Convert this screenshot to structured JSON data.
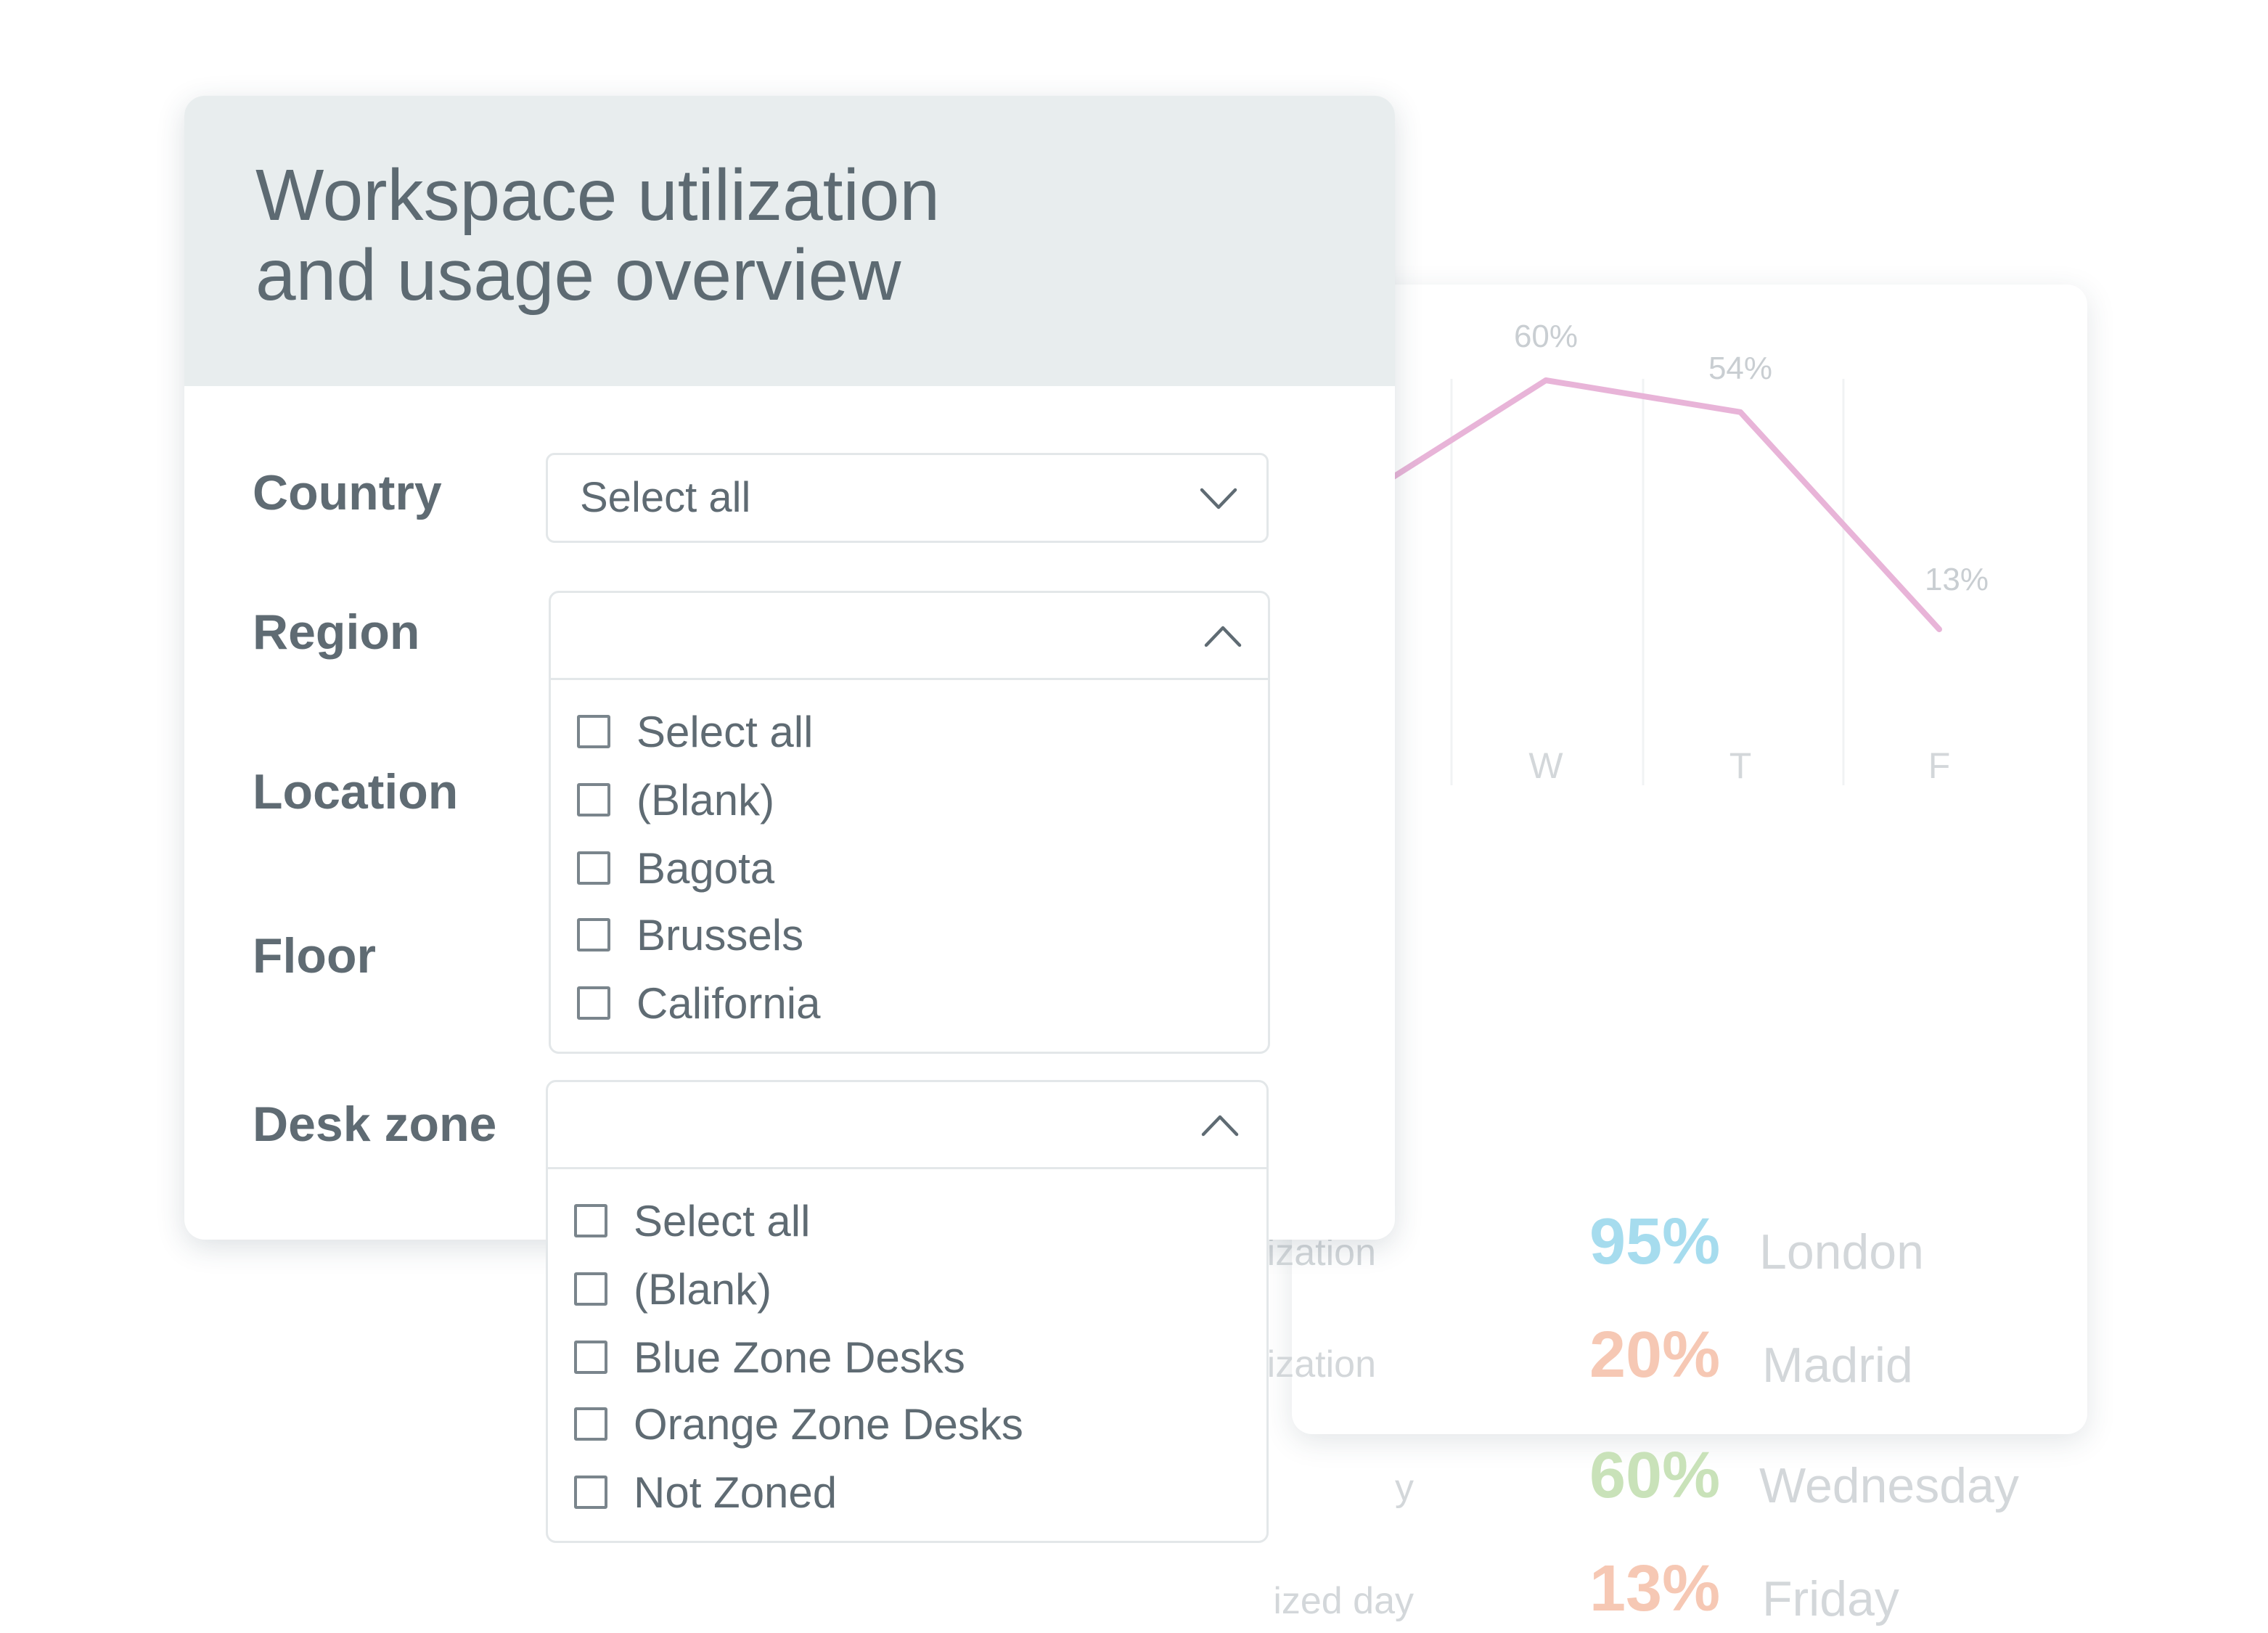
{
  "title": {
    "line1": "Workspace utilization",
    "line2": "and usage overview"
  },
  "filters": {
    "country": {
      "label": "Country",
      "value": "Select all"
    },
    "region": {
      "label": "Region",
      "options": [
        "Select all",
        "(Blank)",
        "Bagota",
        "Brussels",
        "California"
      ]
    },
    "location": {
      "label": "Location"
    },
    "floor": {
      "label": "Floor"
    },
    "desk_zone": {
      "label": "Desk zone",
      "options": [
        "Select all",
        "(Blank)",
        "Blue Zone Desks",
        "Orange Zone Desks",
        "Not Zoned"
      ]
    }
  },
  "chart_data": {
    "type": "line",
    "categories": [
      "W",
      "T",
      "F"
    ],
    "values": [
      60,
      54,
      13
    ],
    "data_labels": [
      "60%",
      "54%",
      "13%"
    ],
    "ylim": [
      0,
      100
    ],
    "color": "#e8b4d8",
    "grid": true
  },
  "stats": [
    {
      "label": "ilization",
      "value": "95%",
      "name": "London",
      "color": "#a6dcee"
    },
    {
      "label": "lization",
      "value": "20%",
      "name": "Madrid",
      "color": "#f6c8b4"
    },
    {
      "label": "y",
      "value": "60%",
      "name": "Wednesday",
      "color": "#c9e2b9"
    },
    {
      "label": "ized day",
      "value": "13%",
      "name": "Friday",
      "color": "#f6c8b4"
    }
  ],
  "icons": {
    "dropdown_closed": "chevron-down-icon",
    "dropdown_open": "chevron-up-icon",
    "checkbox": "checkbox-icon"
  }
}
